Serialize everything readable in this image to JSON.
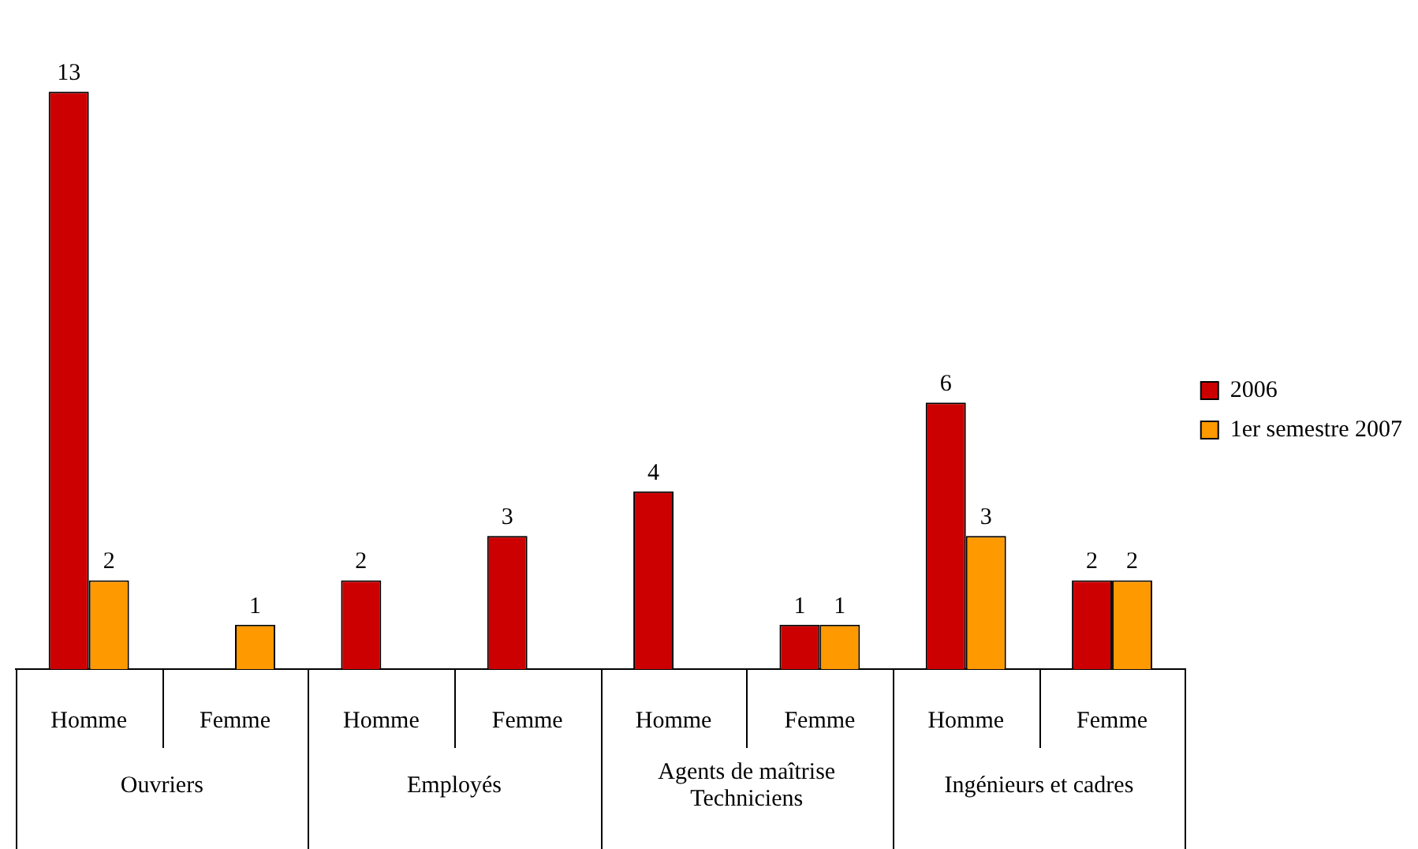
{
  "chart_data": {
    "type": "bar",
    "categories": [
      "Homme",
      "Femme",
      "Homme",
      "Femme",
      "Homme",
      "Femme",
      "Homme",
      "Femme"
    ],
    "annotations": [
      "Ouvriers",
      "Employés",
      "Agents de maîtrise Techniciens",
      "Ingénieurs et cadres"
    ],
    "series": [
      {
        "name": "2006",
        "color": "#cc0000",
        "values": [
          13,
          null,
          2,
          3,
          4,
          1,
          6,
          2
        ]
      },
      {
        "name": "1er semestre 2007",
        "color": "#ff9900",
        "values": [
          2,
          1,
          null,
          null,
          null,
          1,
          3,
          2
        ]
      }
    ],
    "data_labels": true,
    "grid": false,
    "legend": "right"
  }
}
